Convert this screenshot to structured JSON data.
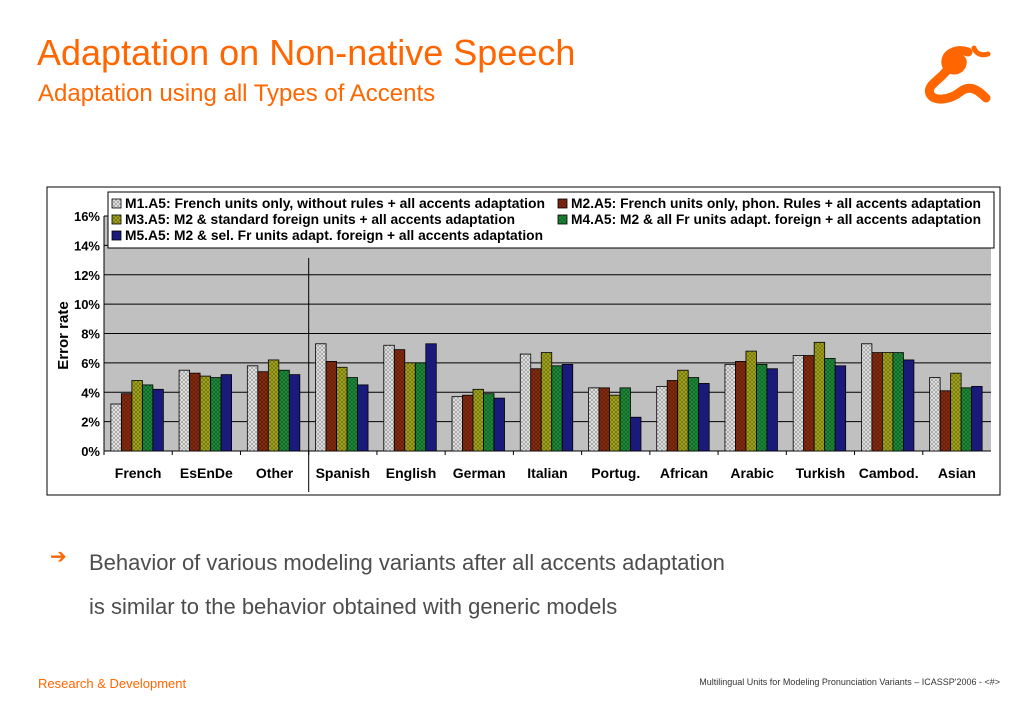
{
  "slide": {
    "title": "Adaptation on Non-native Speech",
    "subtitle": "Adaptation using all Types of Accents",
    "body_lines": [
      "Behavior of various modeling variants after all accents adaptation",
      "is similar to the behavior obtained with generic models"
    ],
    "bullet_glyph": "➔",
    "footer_left": "Research & Development",
    "footer_right": "Multilingual Units for Modeling Pronunciation Variants – ICASSP'2006 - <#>",
    "accent_color": "#FF6600",
    "logo_icon": "ampersand-logo-icon"
  },
  "chart_data": {
    "type": "bar",
    "title": "",
    "xlabel": "",
    "ylabel": "Error rate",
    "ylim": [
      0,
      16
    ],
    "yticks": [
      "0%",
      "2%",
      "4%",
      "6%",
      "8%",
      "10%",
      "12%",
      "14%",
      "16%"
    ],
    "grid": true,
    "legend_position": "top",
    "plot_background": "#C0C0C0",
    "categories": [
      "French",
      "EsEnDe",
      "Other",
      "Spanish",
      "English",
      "German",
      "Italian",
      "Portug.",
      "African",
      "Arabic",
      "Turkish",
      "Cambod.",
      "Asian"
    ],
    "group_separator_after": "Other",
    "series": [
      {
        "name": "M1.A5: French units only, without rules + all accents adaptation",
        "color": "#E8E8E8",
        "pattern": "grid",
        "values": [
          3.2,
          5.5,
          5.8,
          7.3,
          7.2,
          3.7,
          6.6,
          4.3,
          4.4,
          5.9,
          6.5,
          7.3,
          5.0
        ]
      },
      {
        "name": "M2.A5: French units only, phon. Rules + all accents adaptation",
        "color": "#8B2C10",
        "pattern": "grid",
        "values": [
          3.9,
          5.3,
          5.4,
          6.1,
          6.9,
          3.8,
          5.6,
          4.3,
          4.8,
          6.1,
          6.5,
          6.7,
          4.1
        ]
      },
      {
        "name": "M3.A5: M2 & standard foreign units + all accents adaptation",
        "color": "#A6A81E",
        "pattern": "grid",
        "values": [
          4.8,
          5.1,
          6.2,
          5.7,
          6.0,
          4.2,
          6.7,
          3.8,
          5.5,
          6.8,
          7.4,
          6.7,
          5.3
        ]
      },
      {
        "name": "M4.A5: M2 & all Fr units adapt. foreign + all accents adaptation",
        "color": "#1E8E3A",
        "pattern": "grid",
        "values": [
          4.5,
          5.0,
          5.5,
          5.0,
          6.0,
          3.9,
          5.8,
          4.3,
          5.0,
          5.9,
          6.3,
          6.7,
          4.3
        ]
      },
      {
        "name": "M5.A5: M2 & sel. Fr units adapt. foreign + all accents adaptation",
        "color": "#1A1A7A",
        "pattern": "solid",
        "values": [
          4.2,
          5.2,
          5.2,
          4.5,
          7.3,
          3.6,
          5.9,
          2.3,
          4.6,
          5.6,
          5.8,
          6.2,
          4.4
        ]
      }
    ]
  }
}
